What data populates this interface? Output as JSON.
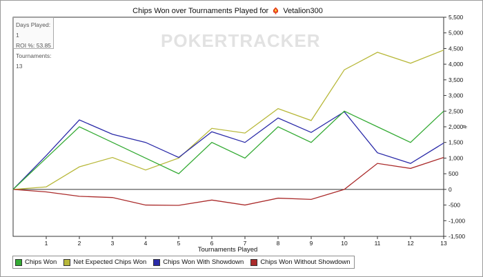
{
  "header": {
    "title_prefix": "Chips Won over Tournaments Played for",
    "player": "Vetalion300"
  },
  "stats": {
    "days_played": "Days Played: 1",
    "roi": "ROI %: 53.85",
    "tournaments": "Tournaments: 13"
  },
  "watermark": "POKERTRACKER",
  "chart_data": {
    "type": "line",
    "title": "Chips Won over Tournaments Played for Vetalion300",
    "xlabel": "Tournaments Played",
    "ylabel": "#",
    "x": [
      0,
      1,
      2,
      3,
      4,
      5,
      6,
      7,
      8,
      9,
      10,
      11,
      12,
      13
    ],
    "xlim": [
      0,
      13
    ],
    "ylim": [
      -1500,
      5500
    ],
    "yticks": [
      -1500,
      -1000,
      -500,
      0,
      500,
      1000,
      1500,
      2000,
      2500,
      3000,
      3500,
      4000,
      4500,
      5000,
      5500
    ],
    "ytick_labels": [
      "-1,500",
      "-1,000",
      "-500",
      "0",
      "500",
      "1,000",
      "1,500",
      "2,000",
      "2,500",
      "3,000",
      "3,500",
      "4,000",
      "4,500",
      "5,000",
      "5,500"
    ],
    "xtick_labels": [
      "1",
      "2",
      "3",
      "4",
      "5",
      "6",
      "7",
      "8",
      "9",
      "10",
      "11",
      "12",
      "13"
    ],
    "grid": false,
    "legend_position": "bottom",
    "series": [
      {
        "name": "Chips Won",
        "color": "#33aa33",
        "values": [
          0,
          1000,
          2000,
          1500,
          1000,
          500,
          1500,
          1000,
          2000,
          1500,
          2500,
          2000,
          1500,
          2500
        ]
      },
      {
        "name": "Net Expected Chips Won",
        "color": "#b8b83a",
        "values": [
          0,
          80,
          720,
          1020,
          620,
          1000,
          1950,
          1800,
          2580,
          2200,
          3820,
          4380,
          4030,
          4450
        ]
      },
      {
        "name": "Chips Won With Showdown",
        "color": "#2a2aa8",
        "values": [
          0,
          1080,
          2220,
          1760,
          1500,
          1020,
          1840,
          1500,
          2280,
          1820,
          2480,
          1170,
          830,
          1480
        ]
      },
      {
        "name": "Chips Won Without Showdown",
        "color": "#aa2a2a",
        "values": [
          0,
          -80,
          -220,
          -260,
          -500,
          -510,
          -340,
          -500,
          -280,
          -320,
          0,
          830,
          670,
          1020
        ]
      }
    ]
  }
}
